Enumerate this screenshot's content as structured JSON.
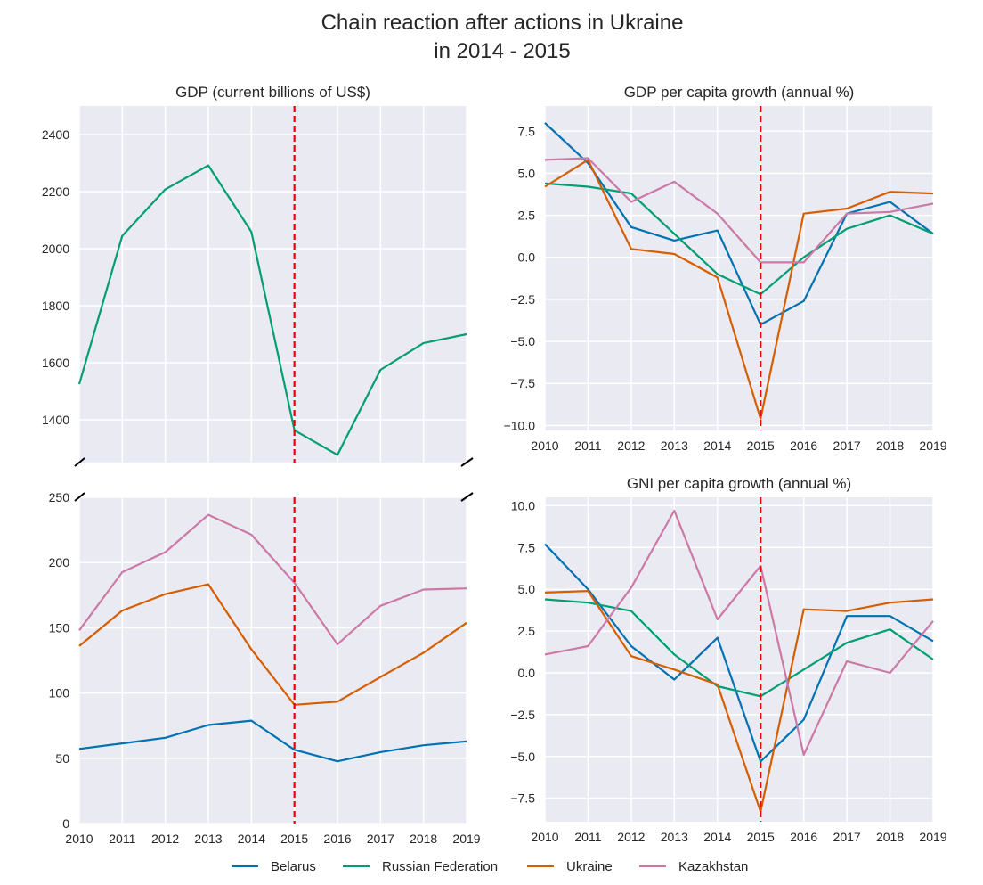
{
  "figure": {
    "title_line1": "Chain reaction after actions in Ukraine",
    "title_line2": "in 2014 - 2015"
  },
  "colors": {
    "Belarus": "#0072b2",
    "Russian Federation": "#009e73",
    "Ukraine": "#d55e00",
    "Kazakhstan": "#cc79a7",
    "marker_line": "#e8000b",
    "panel_bg": "#eaeaf2",
    "grid": "#ffffff"
  },
  "legend": {
    "items": [
      {
        "name": "Belarus",
        "color": "#0072b2"
      },
      {
        "name": "Russian Federation",
        "color": "#009e73"
      },
      {
        "name": "Ukraine",
        "color": "#d55e00"
      },
      {
        "name": "Kazakhstan",
        "color": "#cc79a7"
      }
    ]
  },
  "chart_data": [
    {
      "type": "line",
      "title": "GDP (current billions of US$)",
      "panel": "top-left (broken axis, upper part)",
      "x": [
        2010,
        2011,
        2012,
        2013,
        2014,
        2015,
        2016,
        2017,
        2018,
        2019
      ],
      "xlim": [
        2010,
        2019
      ],
      "ylim": [
        1250,
        2500
      ],
      "yticks": [
        1400,
        1600,
        1800,
        2000,
        2200,
        2400
      ],
      "xticks_shown": false,
      "vline_x": 2015,
      "grid": true,
      "series": [
        {
          "name": "Russian Federation",
          "values": [
            1525,
            2045,
            2208,
            2292,
            2059,
            1363,
            1277,
            1575,
            1669,
            1700
          ]
        }
      ]
    },
    {
      "type": "line",
      "title": "",
      "panel": "bottom-left (broken axis, lower part)",
      "x": [
        2010,
        2011,
        2012,
        2013,
        2014,
        2015,
        2016,
        2017,
        2018,
        2019
      ],
      "xlim": [
        2010,
        2019
      ],
      "ylim": [
        0,
        250
      ],
      "yticks": [
        0,
        50,
        100,
        150,
        200,
        250
      ],
      "xticks": [
        "2010",
        "2011",
        "2012",
        "2013",
        "2014",
        "2015",
        "2016",
        "2017",
        "2018",
        "2019"
      ],
      "vline_x": 2015,
      "grid": true,
      "series": [
        {
          "name": "Belarus",
          "values": [
            57.2,
            61.4,
            65.7,
            75.5,
            78.8,
            56.5,
            47.7,
            54.7,
            60.0,
            63.0
          ]
        },
        {
          "name": "Ukraine",
          "values": [
            136.0,
            163.2,
            175.8,
            183.3,
            133.5,
            91.0,
            93.4,
            112.2,
            130.9,
            153.8
          ]
        },
        {
          "name": "Kazakhstan",
          "values": [
            148.0,
            192.6,
            208.0,
            236.6,
            221.4,
            184.4,
            137.3,
            166.8,
            179.3,
            180.2
          ]
        }
      ]
    },
    {
      "type": "line",
      "title": "GDP per capita growth (annual %)",
      "panel": "top-right",
      "x": [
        2010,
        2011,
        2012,
        2013,
        2014,
        2015,
        2016,
        2017,
        2018,
        2019
      ],
      "xlim": [
        2010,
        2019
      ],
      "ylim": [
        -10.3,
        9.0
      ],
      "yticks": [
        "7.5",
        "5.0",
        "2.5",
        "0.0",
        "−2.5",
        "−5.0",
        "−7.5",
        "−10.0"
      ],
      "xticks": [
        "2010",
        "2011",
        "2012",
        "2013",
        "2014",
        "2015",
        "2016",
        "2017",
        "2018",
        "2019"
      ],
      "vline_x": 2015,
      "grid": true,
      "series": [
        {
          "name": "Belarus",
          "values": [
            8.0,
            5.6,
            1.8,
            1.0,
            1.6,
            -4.0,
            -2.6,
            2.6,
            3.3,
            1.4
          ]
        },
        {
          "name": "Russian Federation",
          "values": [
            4.4,
            4.2,
            3.8,
            1.4,
            -1.0,
            -2.2,
            0.0,
            1.7,
            2.5,
            1.4
          ]
        },
        {
          "name": "Ukraine",
          "values": [
            4.2,
            5.8,
            0.5,
            0.2,
            -1.2,
            -9.6,
            2.6,
            2.9,
            3.9,
            3.8
          ]
        },
        {
          "name": "Kazakhstan",
          "values": [
            5.8,
            5.9,
            3.3,
            4.5,
            2.6,
            -0.3,
            -0.3,
            2.6,
            2.7,
            3.2
          ]
        }
      ]
    },
    {
      "type": "line",
      "title": "GNI per capita growth (annual %)",
      "panel": "bottom-right",
      "x": [
        2010,
        2011,
        2012,
        2013,
        2014,
        2015,
        2016,
        2017,
        2018,
        2019
      ],
      "xlim": [
        2010,
        2019
      ],
      "ylim": [
        -8.9,
        10.5
      ],
      "yticks": [
        "10.0",
        "7.5",
        "5.0",
        "2.5",
        "0.0",
        "−2.5",
        "−5.0",
        "−7.5"
      ],
      "xticks": [
        "2010",
        "2011",
        "2012",
        "2013",
        "2014",
        "2015",
        "2016",
        "2017",
        "2018",
        "2019"
      ],
      "vline_x": 2015,
      "grid": true,
      "series": [
        {
          "name": "Belarus",
          "values": [
            7.7,
            5.0,
            1.6,
            -0.4,
            2.1,
            -5.3,
            -2.8,
            3.4,
            3.4,
            1.9
          ]
        },
        {
          "name": "Russian Federation",
          "values": [
            4.4,
            4.2,
            3.7,
            1.1,
            -0.8,
            -1.4,
            0.2,
            1.8,
            2.6,
            0.8
          ]
        },
        {
          "name": "Ukraine",
          "values": [
            4.8,
            4.9,
            1.0,
            0.2,
            -0.7,
            -8.3,
            3.8,
            3.7,
            4.2,
            4.4
          ]
        },
        {
          "name": "Kazakhstan",
          "values": [
            1.1,
            1.6,
            5.1,
            9.7,
            3.2,
            6.4,
            -4.9,
            0.7,
            0.0,
            3.1
          ]
        }
      ]
    }
  ]
}
